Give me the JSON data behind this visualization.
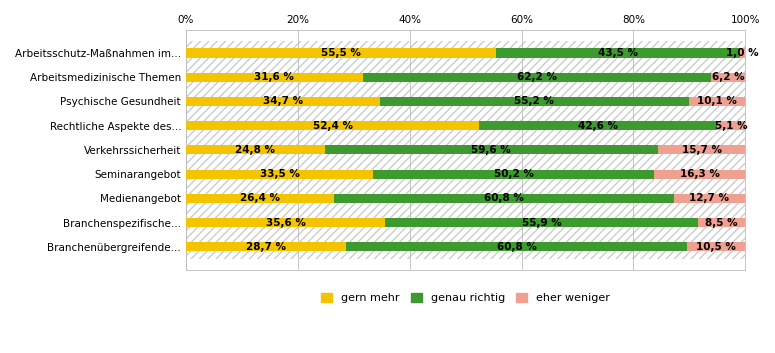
{
  "categories": [
    "Arbeitsschutz-Maßnahmen im...",
    "Arbeitsmedizinische Themen",
    "Psychische Gesundheit",
    "Rechtliche Aspekte des...",
    "Verkehrssicherheit",
    "Seminarangebot",
    "Medienangebot",
    "Branchenspezifische...",
    "Branchenübergreifende..."
  ],
  "gern_mehr": [
    55.5,
    31.6,
    34.7,
    52.4,
    24.8,
    33.5,
    26.4,
    35.6,
    28.7
  ],
  "genau_richtig": [
    43.5,
    62.2,
    55.2,
    42.6,
    59.6,
    50.2,
    60.8,
    55.9,
    60.8
  ],
  "eher_weniger": [
    1.0,
    6.2,
    10.1,
    5.1,
    15.7,
    16.3,
    12.7,
    8.5,
    10.5
  ],
  "color_gern_mehr": "#F5C400",
  "color_genau_richtig": "#3C9A2E",
  "color_eher_weniger": "#F0A090",
  "legend_labels": [
    "gern mehr",
    "genau richtig",
    "eher weniger"
  ],
  "bg_color": "#FFFFFF",
  "hatch_color": "#CCCCCC",
  "grid_color": "#BBBBBB",
  "bar_height": 0.38,
  "xlim": [
    0,
    100
  ],
  "xticks": [
    0,
    20,
    40,
    60,
    80,
    100
  ],
  "xtick_labels": [
    "0%",
    "20%",
    "40%",
    "60%",
    "80%",
    "100%"
  ],
  "label_fontsize": 7.5,
  "tick_fontsize": 7.5
}
